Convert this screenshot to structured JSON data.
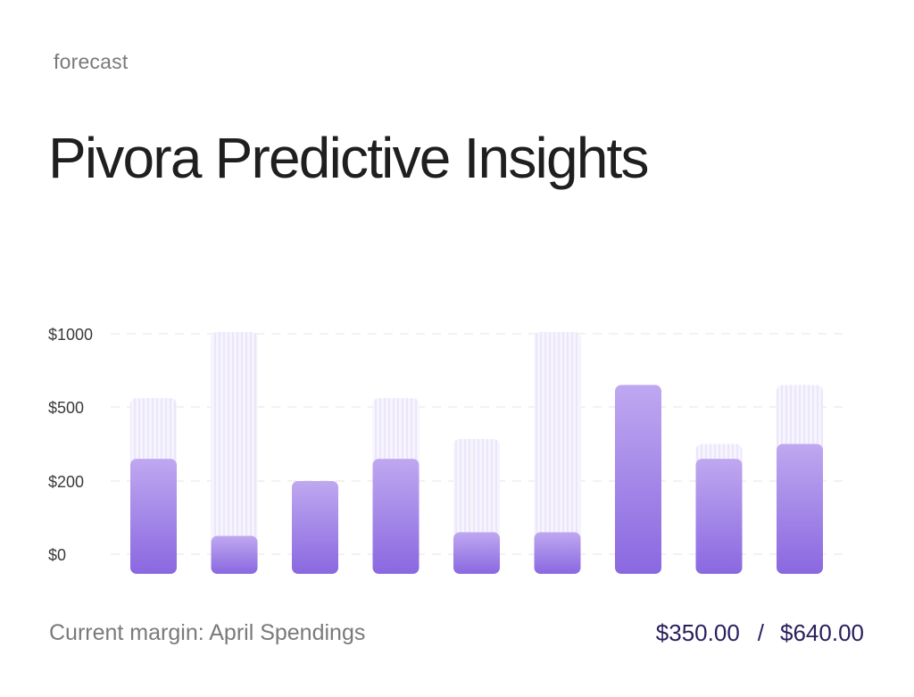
{
  "header": {
    "eyebrow": "forecast",
    "title": "Pivora Predictive Insights"
  },
  "colors": {
    "bar_solid_top": "#bfa8f0",
    "bar_solid_bottom": "#8a68e0",
    "bar_ghost": "#ebe6fb",
    "grid": "#e6e6e6",
    "tick_text": "#3a3a3a",
    "value_text": "#2a1f5c"
  },
  "chart_data": {
    "type": "bar",
    "stacked_overlay": true,
    "y_ticks": [
      "$1000",
      "$500",
      "$200",
      "$0"
    ],
    "grid": true,
    "series": [
      {
        "values": [
          290,
          50,
          200,
          290,
          60,
          60,
          650,
          290,
          350
        ]
      },
      {
        "values": [
          560,
          1000,
          200,
          560,
          370,
          1000,
          650,
          350,
          650
        ]
      }
    ]
  },
  "footer": {
    "label": "Current margin: April Spendings",
    "current": "$350.00",
    "separator": "/",
    "total": "$640.00"
  }
}
